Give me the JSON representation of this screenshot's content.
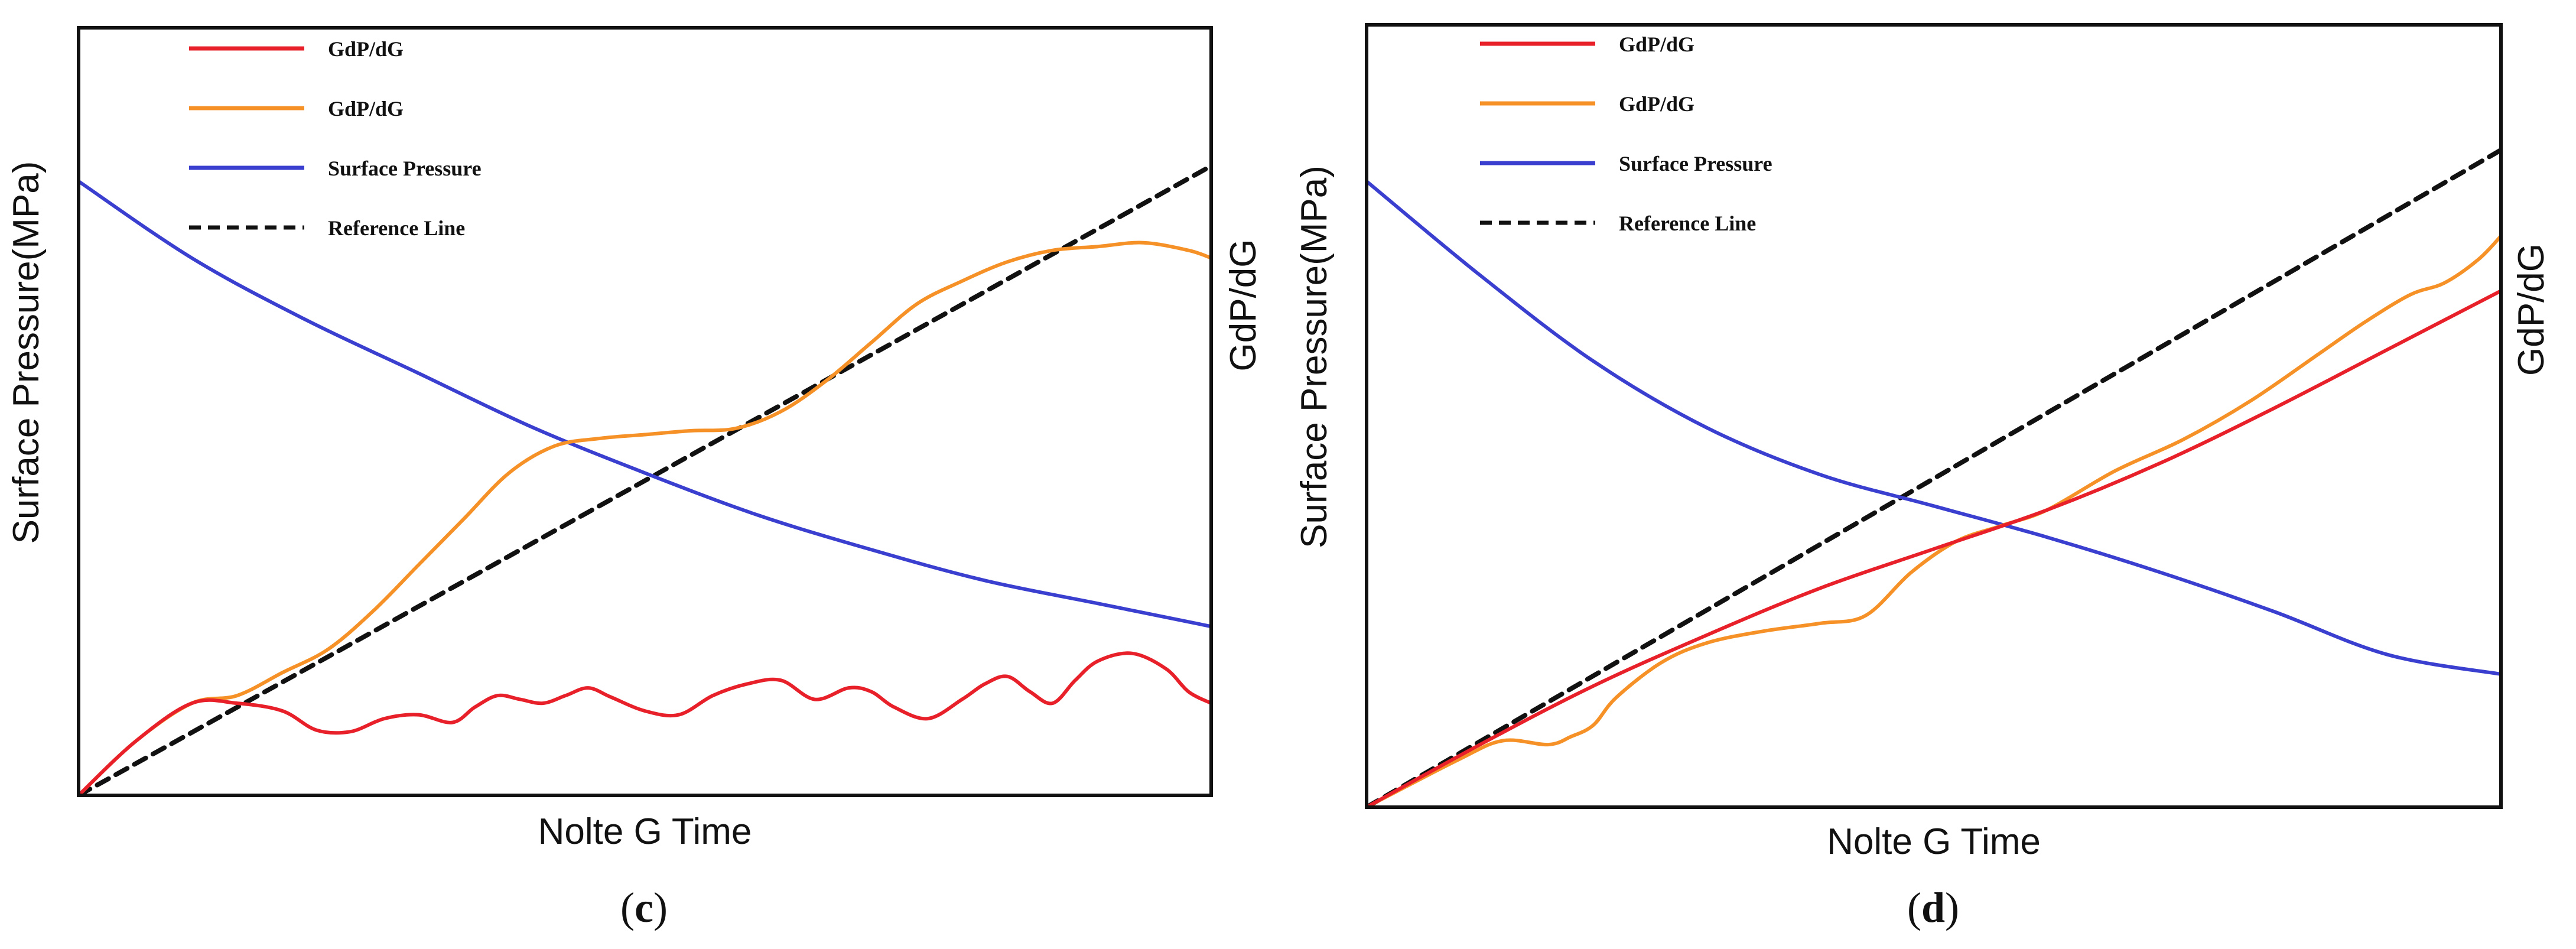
{
  "colors": {
    "red": "#e8202a",
    "orange": "#f59127",
    "blue": "#3a3fd0",
    "reference": "#111111",
    "frame": "#111111"
  },
  "chart_data": [
    {
      "type": "line",
      "panel": "c",
      "panel_label": {
        "open": "(",
        "letter": "c",
        "close": ")"
      },
      "xlabel": "Nolte G Time",
      "ylabel_left": "Surface Pressure(MPa)",
      "ylabel_right": "GdP/dG",
      "xlim": [
        0,
        100
      ],
      "ylim": [
        0,
        100
      ],
      "legend": {
        "position": "top-left"
      },
      "series": [
        {
          "name": "GdP/dG",
          "color": "red",
          "style": "solid",
          "x": [
            0,
            5,
            10,
            14,
            18,
            21,
            24,
            27,
            30,
            33,
            35,
            37,
            39,
            41,
            43,
            45,
            47,
            50,
            53,
            56,
            59,
            62,
            65,
            68,
            70,
            72,
            75,
            78,
            80,
            82,
            84,
            86,
            88,
            90,
            93,
            96,
            98,
            100
          ],
          "y": [
            0,
            7,
            12,
            12,
            11,
            8.5,
            8.3,
            10,
            10.5,
            9.5,
            11.5,
            13,
            12.5,
            12,
            13,
            14,
            12.8,
            11,
            10.5,
            13,
            14.5,
            15,
            12.5,
            14,
            13.5,
            11.5,
            10,
            12.5,
            14.5,
            15.5,
            13.5,
            12,
            15,
            17.5,
            18.5,
            16.5,
            13.5,
            12
          ]
        },
        {
          "name": "GdP/dG",
          "color": "orange",
          "style": "solid",
          "x": [
            0,
            5,
            10,
            14,
            18,
            22,
            26,
            30,
            34,
            38,
            42,
            46,
            50,
            54,
            58,
            62,
            66,
            70,
            74,
            78,
            82,
            86,
            90,
            94,
            98,
            100
          ],
          "y": [
            0,
            7,
            12,
            13,
            16,
            19,
            24,
            30,
            36,
            42,
            45.5,
            46.5,
            47,
            47.5,
            47.8,
            50,
            54,
            59,
            64,
            67,
            69.5,
            71,
            71.5,
            72,
            71,
            70
          ]
        },
        {
          "name": "Surface Pressure",
          "color": "blue",
          "style": "solid",
          "x": [
            0,
            10,
            20,
            30,
            40,
            50,
            60,
            70,
            80,
            90,
            100
          ],
          "y": [
            80,
            70,
            62,
            55,
            48,
            42,
            36.5,
            32,
            28,
            25,
            22
          ]
        },
        {
          "name": "Reference Line",
          "color": "reference",
          "style": "dashed",
          "x": [
            0,
            100
          ],
          "y": [
            0,
            82
          ]
        }
      ]
    },
    {
      "type": "line",
      "panel": "d",
      "panel_label": {
        "open": "(",
        "letter": "d",
        "close": ")"
      },
      "xlabel": "Nolte G Time",
      "ylabel_left": "Surface Pressure(MPa)",
      "ylabel_right": "GdP/dG",
      "xlim": [
        0,
        100
      ],
      "ylim": [
        0,
        100
      ],
      "legend": {
        "position": "top-left"
      },
      "series": [
        {
          "name": "GdP/dG",
          "color": "red",
          "style": "solid",
          "x": [
            0,
            10,
            20,
            30,
            40,
            50,
            60,
            70,
            80,
            90,
            100
          ],
          "y": [
            0,
            8,
            15.5,
            22,
            28,
            33,
            38,
            44,
            51,
            58.5,
            66
          ]
        },
        {
          "name": "GdP/dG",
          "color": "orange",
          "style": "solid",
          "x": [
            0,
            8,
            12,
            16,
            18,
            20,
            22,
            26,
            30,
            35,
            40,
            44,
            48,
            52,
            56,
            60,
            66,
            72,
            78,
            84,
            88,
            92,
            95,
            98,
            100
          ],
          "y": [
            0,
            6,
            8.5,
            8,
            9,
            10.5,
            14,
            18.5,
            21,
            22.5,
            23.5,
            24.5,
            30,
            34,
            36,
            38,
            43,
            47,
            52,
            58,
            62,
            65.5,
            67,
            70,
            73
          ]
        },
        {
          "name": "Surface Pressure",
          "color": "blue",
          "style": "solid",
          "x": [
            0,
            10,
            20,
            30,
            40,
            50,
            60,
            70,
            80,
            90,
            100
          ],
          "y": [
            80,
            68,
            57,
            48.5,
            42.5,
            38.5,
            34.5,
            30,
            25,
            19.5,
            17
          ]
        },
        {
          "name": "Reference Line",
          "color": "reference",
          "style": "dashed",
          "x": [
            0,
            100
          ],
          "y": [
            0,
            84
          ]
        }
      ]
    }
  ]
}
